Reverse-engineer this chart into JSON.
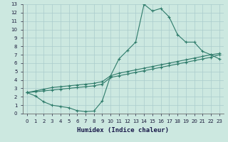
{
  "line1_x": [
    0,
    1,
    2,
    3,
    4,
    5,
    6,
    7,
    8,
    9,
    10,
    11,
    12,
    13,
    14,
    15,
    16,
    17,
    18,
    19,
    20,
    21,
    22,
    23
  ],
  "line1_y": [
    2.5,
    2.1,
    1.4,
    1.0,
    0.85,
    0.7,
    0.35,
    0.25,
    0.3,
    1.5,
    4.5,
    6.5,
    7.5,
    8.5,
    13.0,
    12.2,
    12.5,
    11.5,
    9.4,
    8.5,
    8.5,
    7.4,
    7.0,
    6.5
  ],
  "line2_x": [
    0,
    1,
    2,
    3,
    4,
    5,
    6,
    7,
    8,
    9,
    10,
    11,
    12,
    13,
    14,
    15,
    16,
    17,
    18,
    19,
    20,
    21,
    22,
    23
  ],
  "line2_y": [
    2.5,
    2.7,
    2.9,
    3.1,
    3.2,
    3.3,
    3.4,
    3.5,
    3.6,
    3.8,
    4.5,
    4.8,
    5.0,
    5.2,
    5.4,
    5.6,
    5.8,
    6.0,
    6.2,
    6.4,
    6.6,
    6.8,
    7.0,
    7.15
  ],
  "line3_x": [
    0,
    1,
    2,
    3,
    4,
    5,
    6,
    7,
    8,
    9,
    10,
    11,
    12,
    13,
    14,
    15,
    16,
    17,
    18,
    19,
    20,
    21,
    22,
    23
  ],
  "line3_y": [
    2.5,
    2.6,
    2.7,
    2.8,
    2.9,
    3.0,
    3.1,
    3.2,
    3.3,
    3.5,
    4.3,
    4.5,
    4.7,
    4.9,
    5.1,
    5.3,
    5.5,
    5.7,
    5.9,
    6.1,
    6.3,
    6.5,
    6.7,
    7.0
  ],
  "color": "#2e7b6a",
  "bg_color": "#cce8e0",
  "grid_color": "#aacccc",
  "xlim": [
    -0.5,
    23.5
  ],
  "ylim": [
    0,
    13
  ],
  "xticks": [
    0,
    1,
    2,
    3,
    4,
    5,
    6,
    7,
    8,
    9,
    10,
    11,
    12,
    13,
    14,
    15,
    16,
    17,
    18,
    19,
    20,
    21,
    22,
    23
  ],
  "yticks": [
    0,
    1,
    2,
    3,
    4,
    5,
    6,
    7,
    8,
    9,
    10,
    11,
    12,
    13
  ],
  "xlabel": "Humidex (Indice chaleur)",
  "xlabel_fontsize": 6.5,
  "tick_fontsize": 5.0
}
